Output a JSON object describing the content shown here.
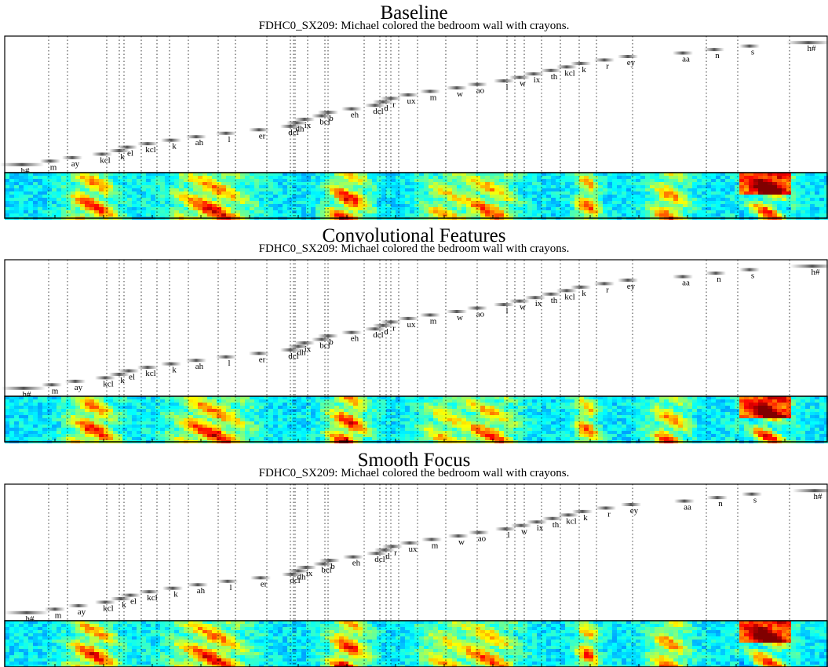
{
  "chart_data": [
    {
      "type": "heatmap",
      "title": "Baseline",
      "subtitle": "FDHC0_SX209: Michael colored the bedroom wall with crayons.",
      "y_phones": [
        "h#",
        "m",
        "ay",
        "kcl",
        "k",
        "el",
        "kcl",
        "k",
        "ah",
        "l",
        "er",
        "dcl",
        "dh",
        "ix",
        "bcl",
        "b",
        "eh",
        "dcl",
        "d",
        "r",
        "ux",
        "m",
        "w",
        "ao",
        "l",
        "w",
        "ix",
        "th",
        "kcl",
        "k",
        "r",
        "ey",
        "aa",
        "n",
        "s",
        "h#"
      ],
      "focus_x": [
        28,
        64,
        92,
        130,
        152,
        162,
        188,
        218,
        250,
        288,
        330,
        370,
        378,
        388,
        410,
        418,
        448,
        478,
        488,
        498,
        520,
        548,
        582,
        608,
        642,
        662,
        680,
        702,
        722,
        740,
        770,
        800,
        870,
        910,
        955,
        1030
      ],
      "boundaries": [
        62,
        86,
        136,
        152,
        158,
        180,
        200,
        216,
        240,
        278,
        300,
        340,
        370,
        374,
        376,
        392,
        414,
        418,
        464,
        484,
        492,
        498,
        508,
        532,
        568,
        608,
        646,
        656,
        668,
        690,
        714,
        738,
        760,
        806,
        900,
        940,
        1006
      ]
    },
    {
      "type": "heatmap",
      "title": "Convolutional Features",
      "subtitle": "FDHC0_SX209: Michael colored the bedroom wall with crayons.",
      "y_phones": [
        "h#",
        "m",
        "ay",
        "kcl",
        "k",
        "el",
        "kcl",
        "k",
        "ah",
        "l",
        "er",
        "dcl",
        "dh",
        "ix",
        "bcl",
        "b",
        "eh",
        "dcl",
        "d",
        "r",
        "ux",
        "m",
        "w",
        "ao",
        "l",
        "w",
        "ix",
        "th",
        "kcl",
        "k",
        "r",
        "ey",
        "aa",
        "n",
        "s",
        "h#"
      ],
      "focus_x": [
        30,
        66,
        96,
        134,
        152,
        164,
        188,
        218,
        250,
        288,
        330,
        370,
        380,
        388,
        410,
        418,
        448,
        478,
        488,
        498,
        520,
        548,
        582,
        608,
        642,
        662,
        682,
        702,
        722,
        740,
        770,
        800,
        870,
        912,
        955,
        1035
      ],
      "boundaries": [
        62,
        86,
        136,
        152,
        158,
        180,
        200,
        216,
        240,
        278,
        300,
        340,
        370,
        374,
        376,
        392,
        414,
        418,
        464,
        484,
        492,
        498,
        508,
        532,
        568,
        608,
        646,
        656,
        668,
        690,
        714,
        738,
        760,
        806,
        900,
        940,
        1006
      ]
    },
    {
      "type": "heatmap",
      "title": "Smooth Focus",
      "subtitle": "FDHC0_SX209: Michael colored the bedroom wall with crayons.",
      "y_phones": [
        "h#",
        "m",
        "ay",
        "kcl",
        "k",
        "el",
        "kcl",
        "k",
        "ah",
        "l",
        "er",
        "dcl",
        "dh",
        "ix",
        "bcl",
        "b",
        "eh",
        "dcl",
        "d",
        "r",
        "ux",
        "m",
        "w",
        "ao",
        "l",
        "w",
        "ix",
        "th",
        "kcl",
        "k",
        "r",
        "ey",
        "aa",
        "n",
        "s",
        "h#"
      ],
      "focus_x": [
        34,
        70,
        100,
        134,
        154,
        166,
        190,
        220,
        252,
        290,
        332,
        372,
        380,
        390,
        412,
        420,
        450,
        480,
        490,
        500,
        522,
        550,
        584,
        610,
        644,
        664,
        684,
        704,
        724,
        742,
        772,
        804,
        872,
        914,
        958,
        1038
      ],
      "boundaries": [
        62,
        86,
        136,
        152,
        158,
        180,
        200,
        216,
        240,
        278,
        300,
        340,
        370,
        374,
        376,
        392,
        414,
        418,
        464,
        484,
        492,
        498,
        508,
        532,
        568,
        608,
        646,
        656,
        668,
        690,
        714,
        738,
        760,
        806,
        900,
        940,
        1006
      ]
    }
  ]
}
